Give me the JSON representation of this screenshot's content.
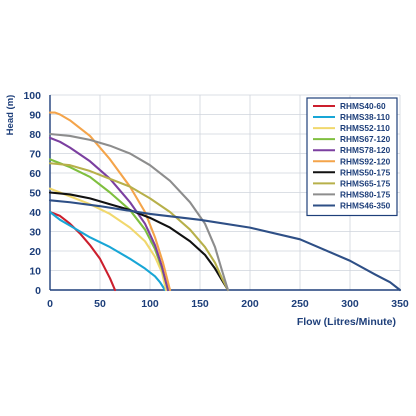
{
  "chart_data": {
    "type": "line",
    "title": "",
    "xlabel": "Flow (Litres/Minute)",
    "ylabel": "Head (m)",
    "xlim": [
      0,
      350
    ],
    "ylim": [
      0,
      100
    ],
    "x_ticks": [
      "0",
      "50",
      "100",
      "150",
      "200",
      "250",
      "300",
      "350"
    ],
    "y_ticks": [
      "0",
      "10",
      "20",
      "30",
      "40",
      "50",
      "60",
      "70",
      "80",
      "90",
      "100"
    ],
    "grid": true,
    "legend_position": "top-right",
    "colors": {
      "background": "#ffffff",
      "plot_background": "#ffffff",
      "grid": "#cfd4dc",
      "axis": "#1e3f7a",
      "tick_text": "#1e3f7a",
      "legend_border": "#1e3f7a"
    },
    "series": [
      {
        "name": "RHMS40-60",
        "color": "#cc1f2d",
        "x": [
          0,
          10,
          20,
          30,
          40,
          50,
          55,
          60,
          65
        ],
        "y": [
          40,
          38,
          34,
          29,
          23,
          16,
          11,
          6,
          0
        ]
      },
      {
        "name": "RHMS38-110",
        "color": "#18a6d6",
        "x": [
          0,
          10,
          20,
          40,
          60,
          80,
          95,
          105,
          110,
          115
        ],
        "y": [
          40,
          36,
          33,
          27,
          22,
          16,
          11,
          7,
          4,
          0
        ]
      },
      {
        "name": "RHMS52-110",
        "color": "#f1d86d",
        "x": [
          0,
          10,
          20,
          40,
          60,
          80,
          95,
          105,
          112,
          116
        ],
        "y": [
          52,
          50,
          48,
          44,
          39,
          32,
          25,
          17,
          9,
          0
        ]
      },
      {
        "name": "RHMS67-120",
        "color": "#7fbf3f",
        "x": [
          0,
          10,
          20,
          40,
          60,
          80,
          95,
          105,
          112,
          118
        ],
        "y": [
          67,
          65,
          63,
          58,
          50,
          41,
          31,
          21,
          11,
          0
        ]
      },
      {
        "name": "RHMS78-120",
        "color": "#7b3fa0",
        "x": [
          0,
          10,
          20,
          40,
          60,
          80,
          95,
          105,
          112,
          118
        ],
        "y": [
          78,
          76,
          73,
          66,
          57,
          45,
          34,
          23,
          12,
          0
        ]
      },
      {
        "name": "RHMS92-120",
        "color": "#f4a44a",
        "x": [
          0,
          5,
          10,
          20,
          40,
          60,
          80,
          95,
          105,
          113,
          120
        ],
        "y": [
          91,
          91,
          90,
          87,
          79,
          67,
          53,
          40,
          27,
          14,
          0
        ]
      },
      {
        "name": "RHMS50-175",
        "color": "#111111",
        "x": [
          0,
          20,
          40,
          60,
          80,
          100,
          120,
          140,
          155,
          165,
          172,
          178
        ],
        "y": [
          50,
          49,
          47,
          44,
          41,
          37,
          32,
          25,
          18,
          11,
          5,
          0
        ]
      },
      {
        "name": "RHMS65-175",
        "color": "#b7b04a",
        "x": [
          0,
          20,
          40,
          60,
          80,
          100,
          120,
          140,
          155,
          165,
          172,
          178
        ],
        "y": [
          65,
          64,
          61,
          57,
          53,
          47,
          40,
          31,
          22,
          14,
          6,
          0
        ]
      },
      {
        "name": "RHMS80-175",
        "color": "#8d8d8d",
        "x": [
          0,
          20,
          40,
          60,
          80,
          100,
          120,
          140,
          155,
          165,
          172,
          178
        ],
        "y": [
          80,
          79,
          77,
          74,
          70,
          64,
          56,
          45,
          34,
          22,
          10,
          0
        ]
      },
      {
        "name": "RHMS46-350",
        "color": "#2e4f86",
        "x": [
          0,
          20,
          50,
          100,
          150,
          200,
          250,
          300,
          325,
          340,
          350
        ],
        "y": [
          46,
          45,
          43,
          39,
          36,
          32,
          26,
          15,
          8,
          4,
          0
        ]
      }
    ]
  }
}
